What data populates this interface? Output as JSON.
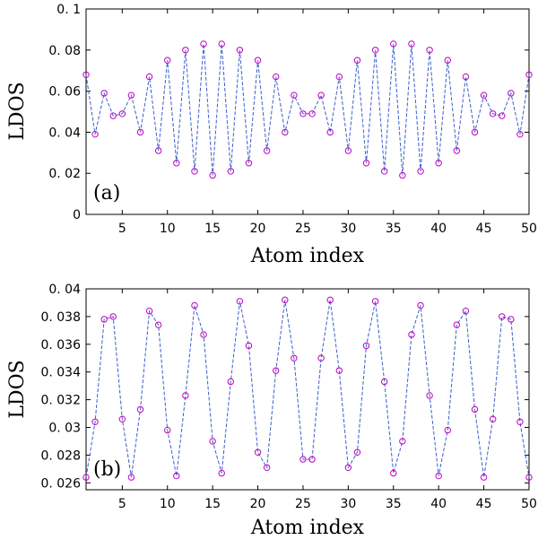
{
  "colors": {
    "line": "#3a5fcd",
    "marker": "#c000c0"
  },
  "chart_data": [
    {
      "type": "line",
      "panel_label": "(a)",
      "xlabel": "Atom index",
      "ylabel": "LDOS",
      "xlim": [
        1,
        50
      ],
      "ylim": [
        0,
        0.1
      ],
      "xticks": [
        5,
        10,
        15,
        20,
        25,
        30,
        35,
        40,
        45,
        50
      ],
      "yticks": [
        0,
        0.02,
        0.04,
        0.06,
        0.08,
        0.1
      ],
      "ytick_labels": [
        "0",
        "0. 02",
        "0. 04",
        "0. 06",
        "0. 08",
        "0. 1"
      ],
      "grid": false,
      "series": [
        {
          "x": [
            1,
            2,
            3,
            4,
            5,
            6,
            7,
            8,
            9,
            10,
            11,
            12,
            13,
            14,
            15,
            16,
            17,
            18,
            19,
            20,
            21,
            22,
            23,
            24,
            25,
            26,
            27,
            28,
            29,
            30,
            31,
            32,
            33,
            34,
            35,
            36,
            37,
            38,
            39,
            40,
            41,
            42,
            43,
            44,
            45,
            46,
            47,
            48,
            49,
            50
          ],
          "values": [
            0.068,
            0.039,
            0.059,
            0.048,
            0.049,
            0.058,
            0.04,
            0.067,
            0.031,
            0.075,
            0.025,
            0.08,
            0.021,
            0.083,
            0.019,
            0.083,
            0.021,
            0.08,
            0.025,
            0.075,
            0.031,
            0.067,
            0.04,
            0.058,
            0.049,
            0.049,
            0.058,
            0.04,
            0.067,
            0.031,
            0.075,
            0.025,
            0.08,
            0.021,
            0.083,
            0.019,
            0.083,
            0.021,
            0.08,
            0.025,
            0.075,
            0.031,
            0.067,
            0.04,
            0.058,
            0.049,
            0.048,
            0.059,
            0.039,
            0.068
          ]
        }
      ]
    },
    {
      "type": "line",
      "panel_label": "(b)",
      "xlabel": "Atom index",
      "ylabel": "LDOS",
      "xlim": [
        1,
        50
      ],
      "ylim": [
        0.0255,
        0.04
      ],
      "xticks": [
        5,
        10,
        15,
        20,
        25,
        30,
        35,
        40,
        45,
        50
      ],
      "yticks": [
        0.026,
        0.028,
        0.03,
        0.032,
        0.034,
        0.036,
        0.038,
        0.04
      ],
      "ytick_labels": [
        "0. 026",
        "0. 028",
        "0. 03",
        "0. 032",
        "0. 034",
        "0. 036",
        "0. 038",
        "0. 04"
      ],
      "grid": false,
      "series": [
        {
          "x": [
            1,
            2,
            3,
            4,
            5,
            6,
            7,
            8,
            9,
            10,
            11,
            12,
            13,
            14,
            15,
            16,
            17,
            18,
            19,
            20,
            21,
            22,
            23,
            24,
            25,
            26,
            27,
            28,
            29,
            30,
            31,
            32,
            33,
            34,
            35,
            36,
            37,
            38,
            39,
            40,
            41,
            42,
            43,
            44,
            45,
            46,
            47,
            48,
            49,
            50
          ],
          "values": [
            0.0264,
            0.0304,
            0.0378,
            0.038,
            0.0306,
            0.0264,
            0.0313,
            0.0384,
            0.0374,
            0.0298,
            0.0265,
            0.0323,
            0.0388,
            0.0367,
            0.029,
            0.0267,
            0.0333,
            0.0391,
            0.0359,
            0.0282,
            0.0271,
            0.0341,
            0.0392,
            0.035,
            0.0277,
            0.0277,
            0.035,
            0.0392,
            0.0341,
            0.0271,
            0.0282,
            0.0359,
            0.0391,
            0.0333,
            0.0267,
            0.029,
            0.0367,
            0.0388,
            0.0323,
            0.0265,
            0.0298,
            0.0374,
            0.0384,
            0.0313,
            0.0264,
            0.0306,
            0.038,
            0.0378,
            0.0304,
            0.0264
          ]
        }
      ]
    }
  ]
}
